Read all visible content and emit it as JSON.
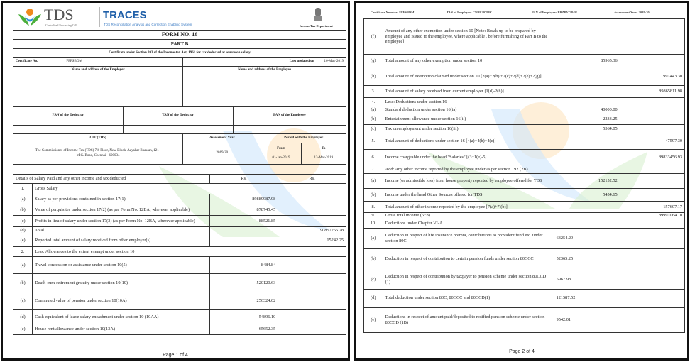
{
  "page1": {
    "logo_tds": "TDS",
    "logo_tds_sub": "Centralized Processing Cell",
    "logo_traces": "TRACES",
    "logo_traces_sub": "TDS Reconciliation Analysis and Correction Enabling System",
    "emblem_text": "Income Tax Department",
    "form_title": "FORM NO. 16",
    "part": "PART B",
    "certificate_caption": "Certificate under Section 203 of the Income-tax Act, 1961 for tax deducted at source on salary",
    "certificate_no_label": "Certificate No.",
    "certificate_no": "FFFSBDM",
    "last_updated_label": "Last updated on",
    "last_updated": "16-May-2019",
    "employer_name_label": "Name and address of the Employer",
    "employee_name_label": "Name and address of the Employee",
    "pan_deductor_label": "PAN of the Deductor",
    "tan_deductor_label": "TAN of the Deductor",
    "pan_employee_label": "PAN of the Employee",
    "cit_label": "CIT (TDS)",
    "assessment_year_label": "Assessment Year",
    "period_label": "Period with the Employer",
    "from_label": "From",
    "to_label": "To",
    "cit_address": "The Commissioner of Income Tax (TDS) 7th Floor, New Block, Aayakar Bhawan, 121 , M.G. Road, Chennai - 600034",
    "assessment_year": "2019-20",
    "from_date": "01-Jan-2019",
    "to_date": "13-Mar-2019",
    "salary_header": [
      "Details of Salary Paid and any other income and tax deducted",
      "Rs.",
      "Rs."
    ],
    "rows": [
      {
        "sn": "1.",
        "desc": "Gross Salary",
        "c1": "",
        "c2": ""
      },
      {
        "sn": "(a)",
        "desc": "Salary as per provisions contained in section 17(1)",
        "c1": "89889987.98",
        "c2": ""
      },
      {
        "sn": "(b)",
        "desc": "Value of perquisites under section 17(2) (as per Form No. 12BA, wherever applicable)",
        "c1": "878745.45",
        "c2": ""
      },
      {
        "sn": "(c)",
        "desc": "Profits in lieu of salary under section 17(3) (as per Form No. 12BA, wherever applicable)",
        "c1": "88521.85",
        "c2": ""
      },
      {
        "sn": "(d)",
        "desc": "Total",
        "c1": "",
        "c2": "90857255.28"
      },
      {
        "sn": "(e)",
        "desc": "Reported total amount of salary received from other employer(s)",
        "c1": "",
        "c2": "15242.25"
      },
      {
        "sn": "2.",
        "desc": "Less: Allowances to the extent exempt under section 10",
        "c1": "",
        "c2": ""
      },
      {
        "sn": "(a)",
        "desc": "Travel concession or assistance under section 10(5)",
        "c1": "8484.84",
        "c2": ""
      },
      {
        "sn": "(b)",
        "desc": "Death-cum-retirement gratuity under section 10(10)",
        "c1": "520120.63",
        "c2": ""
      },
      {
        "sn": "(c)",
        "desc": "Commuted value of pension under section 10(10A)",
        "c1": "256324.02",
        "c2": ""
      },
      {
        "sn": "(d)",
        "desc": "Cash equivalent of leave salary encashment under section 10 (10AA)",
        "c1": "54896.10",
        "c2": ""
      },
      {
        "sn": "(e)",
        "desc": "House rent allowance under section 10(13A)",
        "c1": "65652.35",
        "c2": ""
      }
    ],
    "page_label": "Page 1 of 4"
  },
  "page2": {
    "header": {
      "certificate": "Certificate Number: FFFSBDM",
      "tan": "TAN of Employer: CNBR20798C",
      "pan": "PAN of Employer: BBZPA7284H",
      "ay": "Assessment Year: 2019-20"
    },
    "rows": [
      {
        "sn": "(f)",
        "desc": "Amount of any other exemption under section 10 [Note: Break-up to be prepared by employee and issued to the employee, where applicable , before furnishing of Part B to the employee]",
        "c1": "",
        "c2": ""
      },
      {
        "sn": "(g)",
        "desc": "Total amount of any other exemption under section 10",
        "c1": "85965.36",
        "c2": ""
      },
      {
        "sn": "(h)",
        "desc": "Total amount of exemption claimed under section 10 [2(a)+2(b) +2(c)+2(d)+2(e)+2(g)]",
        "c1": "",
        "c2": "991443.30"
      },
      {
        "sn": "3.",
        "desc": "Total amount of salary received from current employer [1(d)-2(h)]",
        "c1": "",
        "c2": "89865811.98"
      },
      {
        "sn": "4.",
        "desc": "Less: Deductions under section 16",
        "c1": "",
        "c2": ""
      },
      {
        "sn": "(a)",
        "desc": "Standard deduction under section 16(ia)",
        "c1": "40000.00",
        "c2": ""
      },
      {
        "sn": "(b)",
        "desc": "Entertainment allowance under section 16(ii)",
        "c1": "2233.25",
        "c2": ""
      },
      {
        "sn": "(c)",
        "desc": "Tax on employment under section 16(iii)",
        "c1": "5364.05",
        "c2": ""
      },
      {
        "sn": "5.",
        "desc": "Total amount of deductions under section 16 [4(a)+4(b)+4(c)]",
        "c1": "",
        "c2": "47597.30"
      },
      {
        "sn": "6.",
        "desc": "Income chargeable under the head \"Salaries\" [(3+1(e)-5]",
        "c1": "",
        "c2": "89833456.93"
      },
      {
        "sn": "7.",
        "desc": "Add: Any other income reported by the employee under as per section 192 (2B)",
        "c1": "",
        "c2": ""
      },
      {
        "sn": "(a)",
        "desc": "Income (or admissible loss) from house property reported by employee offered for TDS",
        "c1": "152152.52",
        "c2": ""
      },
      {
        "sn": "(b)",
        "desc": "Income under the head Other Sources offered for TDS",
        "c1": "5454.65",
        "c2": ""
      },
      {
        "sn": "8.",
        "desc": "Total amount of other income reported by the employee [7(a)+7 (b)]",
        "c1": "",
        "c2": "157607.17"
      },
      {
        "sn": "9.",
        "desc": "Gross total income (6+8)",
        "c1": "",
        "c2": "89991064.10"
      },
      {
        "sn": "10.",
        "desc": "Deductions under Chapter VI-A",
        "c1": "",
        "c2": ""
      },
      {
        "sn": "(a)",
        "desc": "Deduction in respect of life insurance premia, contributions to provident fund etc. under section 80C",
        "c1": "63254.29",
        "c2": ""
      },
      {
        "sn": "(b)",
        "desc": "Deduction in respect of contribution to certain pension funds under section 80CCC",
        "c1": "52365.25",
        "c2": ""
      },
      {
        "sn": "(c)",
        "desc": "Deduction in respect of contribution by taxpayer to pension scheme under section 80CCD (1)",
        "c1": "5967.98",
        "c2": ""
      },
      {
        "sn": "(d)",
        "desc": "Total deduction under section 80C, 80CCC and 80CCD(1)",
        "c1": "121587.52",
        "c2": ""
      },
      {
        "sn": "(e)",
        "desc": "Deductions in respect of amount paid/deposited to notified pension scheme under section 80CCD (1B)",
        "c1": "9542.01",
        "c2": ""
      }
    ],
    "page_label": "Page 2 of 4"
  },
  "colors": {
    "traces_blue": "#1f5fa8",
    "logo_orange": "#f08a1c",
    "logo_green": "#4caf3c"
  }
}
